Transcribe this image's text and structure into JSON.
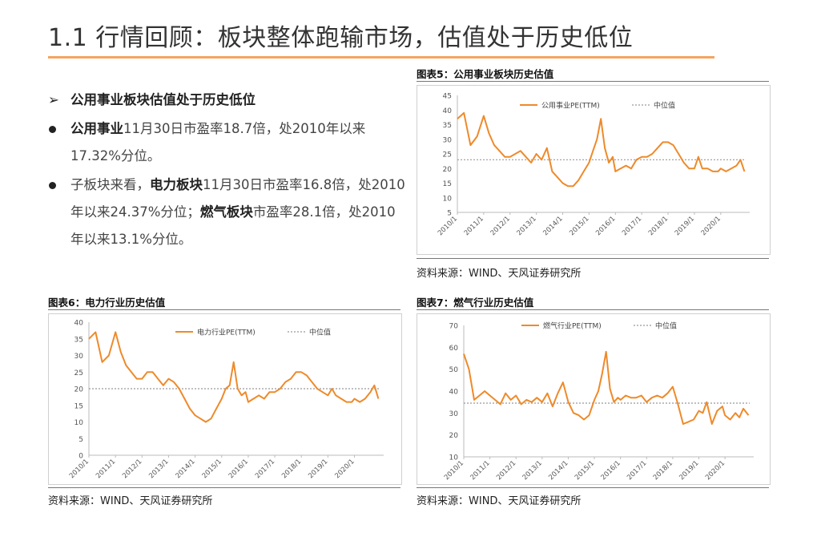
{
  "page": {
    "title": "1.1 行情回顾：板块整体跑输市场，估值处于历史低位",
    "accent_color": "#f4a460"
  },
  "bullets": [
    {
      "marker": "➢",
      "parts": [
        {
          "text": "公用事业板块估值处于历史低位",
          "bold": true
        }
      ]
    },
    {
      "marker": "dot",
      "parts": [
        {
          "text": "公用事业",
          "bold": true
        },
        {
          "text": "11月30日市盈率18.7倍，处2010年以来17.32%分位。",
          "bold": false
        }
      ]
    },
    {
      "marker": "dot",
      "parts": [
        {
          "text": "子板块来看，",
          "bold": false
        },
        {
          "text": "电力板块",
          "bold": true
        },
        {
          "text": "11月30日市盈率16.8倍，处2010年以来24.37%分位；",
          "bold": false
        },
        {
          "text": "燃气板块",
          "bold": true
        },
        {
          "text": "市盈率28.1倍，处2010年以来13.1%分位。",
          "bold": false
        }
      ]
    }
  ],
  "charts": {
    "c5": {
      "title": "图表5：公用事业板块历史估值",
      "source": "资料来源：WIND、天风证券研究所"
    },
    "c6": {
      "title": "图表6：电力行业历史估值",
      "source": "资料来源：WIND、天风证券研究所"
    },
    "c7": {
      "title": "图表7：燃气行业历史估值",
      "source": "资料来源：WIND、天风证券研究所"
    }
  },
  "chart_data": [
    {
      "id": "c5",
      "type": "line",
      "title": "公用事业板块历史估值",
      "x_ticks": [
        "2010/1",
        "2011/1",
        "2012/1",
        "2013/1",
        "2014/1",
        "2015/1",
        "2016/1",
        "2017/1",
        "2018/1",
        "2019/1",
        "2020/1"
      ],
      "ylim": [
        5,
        45
      ],
      "y_ticks": [
        5,
        10,
        15,
        20,
        25,
        30,
        35,
        40,
        45
      ],
      "legend_position": "top",
      "series": [
        {
          "name": "公用事业PE(TTM)",
          "color": "#ee8a2a",
          "x": [
            2010.0,
            2010.25,
            2010.5,
            2010.75,
            2011.0,
            2011.2,
            2011.4,
            2011.6,
            2011.8,
            2012.0,
            2012.2,
            2012.4,
            2012.6,
            2012.8,
            2013.0,
            2013.2,
            2013.4,
            2013.6,
            2013.8,
            2014.0,
            2014.2,
            2014.4,
            2014.6,
            2014.8,
            2015.0,
            2015.15,
            2015.3,
            2015.45,
            2015.6,
            2015.75,
            2015.9,
            2016.0,
            2016.2,
            2016.4,
            2016.6,
            2016.8,
            2017.0,
            2017.2,
            2017.4,
            2017.6,
            2017.8,
            2018.0,
            2018.2,
            2018.4,
            2018.6,
            2018.8,
            2019.0,
            2019.15,
            2019.3,
            2019.5,
            2019.7,
            2019.9,
            2020.0,
            2020.2,
            2020.4,
            2020.6,
            2020.75,
            2020.9
          ],
          "y": [
            37,
            39,
            28,
            31,
            38,
            32,
            28,
            26,
            24,
            24,
            25,
            26,
            24,
            22,
            25,
            23,
            27,
            19,
            17,
            15,
            14,
            14,
            16,
            19,
            22,
            26,
            30,
            37,
            27,
            22,
            24,
            19,
            20,
            21,
            20,
            23,
            24,
            24,
            25,
            27,
            29,
            29,
            28,
            25,
            22,
            20,
            20,
            24,
            20,
            20,
            19,
            19,
            20,
            19,
            20,
            21,
            23,
            19
          ]
        },
        {
          "name": "中位值",
          "color": "#999999",
          "y": [
            23,
            23
          ]
        }
      ]
    },
    {
      "id": "c6",
      "type": "line",
      "title": "电力行业历史估值",
      "x_ticks": [
        "2010/1",
        "2011/1",
        "2012/1",
        "2013/1",
        "2014/1",
        "2015/1",
        "2016/1",
        "2017/1",
        "2018/1",
        "2019/1",
        "2020/1"
      ],
      "ylim": [
        0,
        40
      ],
      "y_ticks": [
        0,
        5,
        10,
        15,
        20,
        25,
        30,
        35,
        40
      ],
      "legend_position": "top",
      "series": [
        {
          "name": "电力行业PE(TTM)",
          "color": "#ee8a2a",
          "x": [
            2010.0,
            2010.25,
            2010.5,
            2010.75,
            2011.0,
            2011.2,
            2011.4,
            2011.6,
            2011.8,
            2012.0,
            2012.2,
            2012.4,
            2012.6,
            2012.8,
            2013.0,
            2013.2,
            2013.4,
            2013.6,
            2013.8,
            2014.0,
            2014.2,
            2014.4,
            2014.6,
            2014.8,
            2015.0,
            2015.15,
            2015.3,
            2015.45,
            2015.6,
            2015.75,
            2015.9,
            2016.0,
            2016.2,
            2016.4,
            2016.6,
            2016.8,
            2017.0,
            2017.2,
            2017.4,
            2017.6,
            2017.8,
            2018.0,
            2018.2,
            2018.4,
            2018.6,
            2018.8,
            2019.0,
            2019.15,
            2019.3,
            2019.5,
            2019.7,
            2019.9,
            2020.0,
            2020.2,
            2020.4,
            2020.6,
            2020.75,
            2020.9
          ],
          "y": [
            35,
            37,
            28,
            30,
            37,
            31,
            27,
            25,
            23,
            23,
            25,
            25,
            23,
            21,
            23,
            22,
            20,
            17,
            14,
            12,
            11,
            10,
            11,
            14,
            17,
            20,
            21,
            28,
            20,
            18,
            19,
            16,
            17,
            18,
            17,
            19,
            19,
            20,
            22,
            23,
            25,
            25,
            24,
            22,
            20,
            19,
            18,
            20,
            18,
            17,
            16,
            16,
            17,
            16,
            17,
            19,
            21,
            17
          ]
        },
        {
          "name": "中位值",
          "color": "#999999",
          "y": [
            20,
            20
          ]
        }
      ]
    },
    {
      "id": "c7",
      "type": "line",
      "title": "燃气行业历史估值",
      "x_ticks": [
        "2010/1",
        "2011/1",
        "2012/1",
        "2013/1",
        "2014/1",
        "2015/1",
        "2016/1",
        "2017/1",
        "2018/1",
        "2019/1",
        "2020/1"
      ],
      "ylim": [
        10,
        70
      ],
      "y_ticks": [
        10,
        20,
        30,
        40,
        50,
        60,
        70
      ],
      "legend_position": "top",
      "series": [
        {
          "name": "燃气行业PE(TTM)",
          "color": "#ee8a2a",
          "x": [
            2010.0,
            2010.2,
            2010.4,
            2010.6,
            2010.8,
            2011.0,
            2011.2,
            2011.4,
            2011.6,
            2011.8,
            2012.0,
            2012.2,
            2012.4,
            2012.6,
            2012.8,
            2013.0,
            2013.2,
            2013.4,
            2013.6,
            2013.8,
            2014.0,
            2014.2,
            2014.4,
            2014.6,
            2014.8,
            2015.0,
            2015.15,
            2015.3,
            2015.45,
            2015.6,
            2015.75,
            2015.9,
            2016.0,
            2016.2,
            2016.4,
            2016.6,
            2016.8,
            2017.0,
            2017.2,
            2017.4,
            2017.6,
            2017.8,
            2018.0,
            2018.2,
            2018.4,
            2018.6,
            2018.8,
            2019.0,
            2019.15,
            2019.3,
            2019.5,
            2019.7,
            2019.9,
            2020.0,
            2020.2,
            2020.4,
            2020.55,
            2020.7,
            2020.9
          ],
          "y": [
            57,
            50,
            36,
            38,
            40,
            38,
            36,
            34,
            39,
            36,
            38,
            34,
            36,
            35,
            37,
            35,
            39,
            33,
            39,
            44,
            35,
            30,
            29,
            27,
            29,
            36,
            40,
            48,
            58,
            41,
            35,
            37,
            36,
            38,
            37,
            37,
            38,
            35,
            37,
            38,
            37,
            39,
            42,
            34,
            25,
            26,
            27,
            31,
            30,
            35,
            25,
            31,
            33,
            29,
            27,
            30,
            28,
            32,
            29
          ]
        },
        {
          "name": "中位值",
          "color": "#999999",
          "y": [
            34.5,
            34.5
          ]
        }
      ]
    }
  ]
}
